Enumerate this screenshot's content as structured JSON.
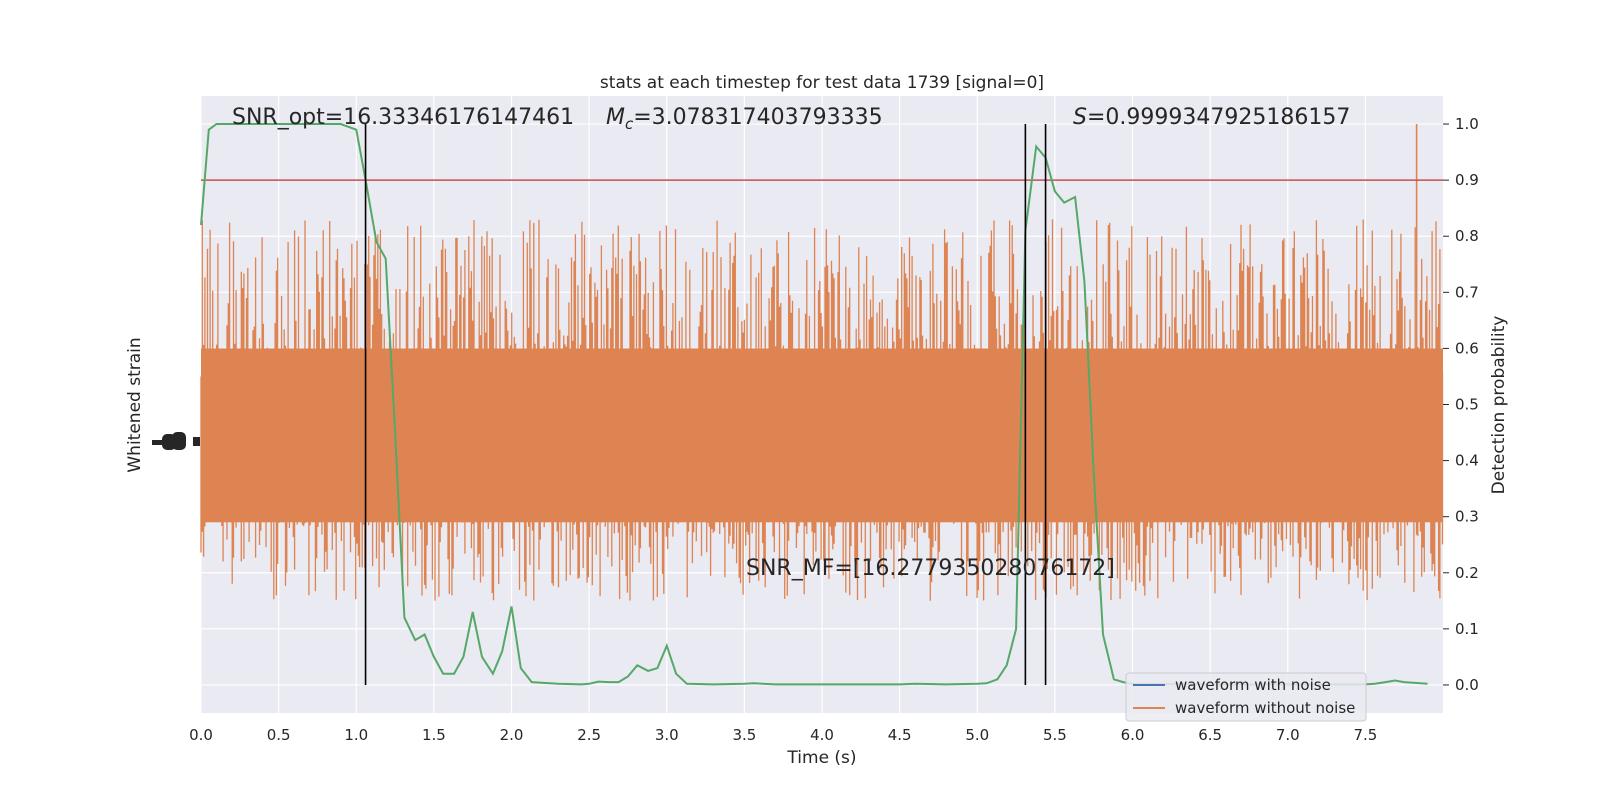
{
  "chart_data": {
    "type": "line",
    "title": "stats at each timestep for test data 1739 [signal=0]",
    "xlabel": "Time (s)",
    "ylabel_left": "Whitened strain",
    "ylabel_right": "Detection probability",
    "xlim": [
      0,
      8
    ],
    "ylim_right": [
      -0.05,
      1.05
    ],
    "x_ticks": [
      0.0,
      0.5,
      1.0,
      1.5,
      2.0,
      2.5,
      3.0,
      3.5,
      4.0,
      4.5,
      5.0,
      5.5,
      6.0,
      6.5,
      7.0,
      7.5
    ],
    "x_tick_labels": [
      "0.0",
      "0.5",
      "1.0",
      "1.5",
      "2.0",
      "2.5",
      "3.0",
      "3.5",
      "4.0",
      "4.5",
      "5.0",
      "5.5",
      "6.0",
      "6.5",
      "7.0",
      "7.5"
    ],
    "y_ticks_right": [
      0.0,
      0.1,
      0.2,
      0.3,
      0.4,
      0.5,
      0.6,
      0.7,
      0.8,
      0.9,
      1.0
    ],
    "y_tick_labels_right": [
      "0.0",
      "0.1",
      "0.2",
      "0.3",
      "0.4",
      "0.5",
      "0.6",
      "0.7",
      "0.8",
      "0.9",
      "1.0"
    ],
    "grid": true,
    "legend_placement": "bottom-right",
    "threshold": 0.9,
    "vertical_lines": [
      1.06,
      5.31,
      5.44
    ],
    "annotations": {
      "snr_opt": "SNR_opt=16.33346176147461",
      "mc_symbol": "M",
      "mc_subscript": "c",
      "mc_value": "=3.078317403793335",
      "s_symbol": "S",
      "s_value": "=0.9999347925186157",
      "snr_mf": "SNR_MF=[16.277935028076172]"
    },
    "series": [
      {
        "name": "waveform with noise",
        "color": "#4c72b0"
      },
      {
        "name": "waveform without noise",
        "color": "#dd8452"
      },
      {
        "color": "#55a868",
        "x": [
          0.0,
          0.05,
          0.1,
          0.2,
          0.3,
          0.5,
          0.7,
          0.9,
          1.0,
          1.06,
          1.13,
          1.19,
          1.25,
          1.31,
          1.38,
          1.44,
          1.5,
          1.56,
          1.63,
          1.69,
          1.75,
          1.81,
          1.88,
          1.94,
          2.0,
          2.06,
          2.13,
          2.3,
          2.45,
          2.5,
          2.56,
          2.63,
          2.69,
          2.75,
          2.81,
          2.88,
          2.94,
          3.0,
          3.06,
          3.13,
          3.3,
          3.5,
          3.56,
          3.7,
          4.0,
          4.5,
          4.6,
          4.8,
          5.0,
          5.06,
          5.13,
          5.19,
          5.25,
          5.31,
          5.38,
          5.44,
          5.5,
          5.56,
          5.63,
          5.69,
          5.75,
          5.81,
          5.88,
          5.94,
          6.0,
          6.5,
          7.0,
          7.5,
          7.56,
          7.63,
          7.69,
          7.75,
          7.9
        ],
        "values": [
          0.82,
          0.99,
          1.0,
          1.0,
          1.0,
          1.0,
          1.0,
          1.0,
          0.99,
          0.9,
          0.79,
          0.76,
          0.45,
          0.12,
          0.08,
          0.09,
          0.05,
          0.02,
          0.02,
          0.05,
          0.13,
          0.05,
          0.02,
          0.06,
          0.14,
          0.03,
          0.005,
          0.002,
          0.001,
          0.002,
          0.006,
          0.005,
          0.005,
          0.015,
          0.035,
          0.025,
          0.03,
          0.07,
          0.02,
          0.002,
          0.001,
          0.002,
          0.003,
          0.001,
          0.001,
          0.001,
          0.002,
          0.001,
          0.002,
          0.003,
          0.01,
          0.035,
          0.1,
          0.81,
          0.96,
          0.94,
          0.88,
          0.86,
          0.87,
          0.72,
          0.38,
          0.09,
          0.01,
          0.005,
          0.002,
          0.001,
          0.001,
          0.001,
          0.002,
          0.005,
          0.008,
          0.005,
          0.002
        ]
      }
    ],
    "strain_band_prob_range": [
      0.18,
      0.79
    ]
  }
}
